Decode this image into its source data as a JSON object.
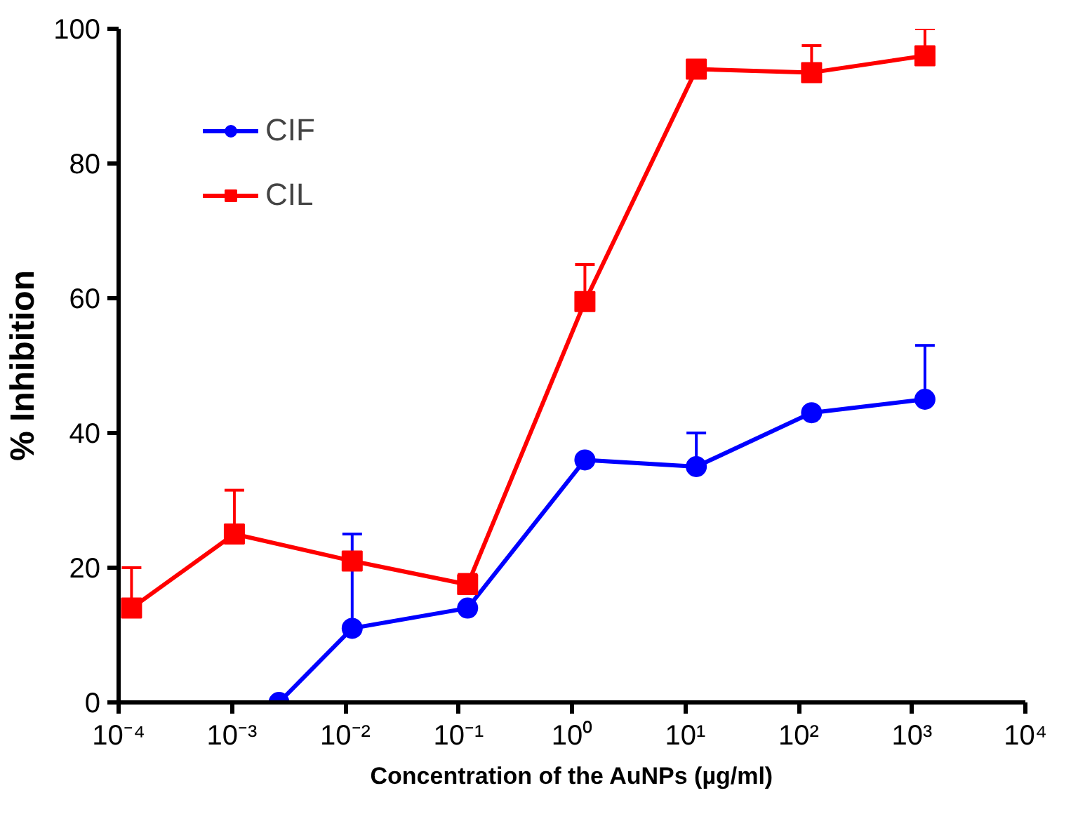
{
  "chart_data": {
    "type": "line",
    "xlabel": "Concentration of the AuNPs (µg/ml)",
    "ylabel": "% Inhibition",
    "log": "x",
    "xlim": [
      0.0001,
      10000
    ],
    "ylim": [
      0,
      100
    ],
    "xticks": [
      {
        "value": 0.0001,
        "label": "10⁻⁴"
      },
      {
        "value": 0.001,
        "label": "10⁻³"
      },
      {
        "value": 0.01,
        "label": "10⁻²"
      },
      {
        "value": 0.1,
        "label": "10⁻¹"
      },
      {
        "value": 1,
        "label": "10⁰"
      },
      {
        "value": 10,
        "label": "10¹"
      },
      {
        "value": 100,
        "label": "10²"
      },
      {
        "value": 1000,
        "label": "10³"
      },
      {
        "value": 10000,
        "label": "10⁴"
      }
    ],
    "yticks": [
      0,
      20,
      40,
      60,
      80,
      100
    ],
    "grid": false,
    "legend": "top left",
    "series": [
      {
        "name": "CIF",
        "color": "#0000ff",
        "marker": "circle",
        "x": [
          0.0026,
          0.0115,
          0.12,
          1.3,
          12.5,
          130,
          1300
        ],
        "values": [
          0,
          11,
          14,
          36,
          35,
          43,
          45
        ],
        "errors": [
          null,
          [
            11,
            25
          ],
          null,
          null,
          [
            35,
            40
          ],
          null,
          [
            45,
            53
          ]
        ]
      },
      {
        "name": "CIL",
        "color": "#ff0000",
        "marker": "square",
        "x": [
          0.00013,
          0.00105,
          0.0115,
          0.12,
          1.3,
          12.5,
          130,
          1300
        ],
        "values": [
          14,
          25,
          21,
          17.5,
          59.5,
          94,
          93.5,
          96
        ],
        "errors": [
          [
            14,
            20
          ],
          [
            25,
            31.5
          ],
          null,
          [
            17.5,
            19
          ],
          [
            59.5,
            65
          ],
          null,
          [
            93.5,
            97.5
          ],
          [
            96,
            100
          ]
        ]
      }
    ]
  }
}
